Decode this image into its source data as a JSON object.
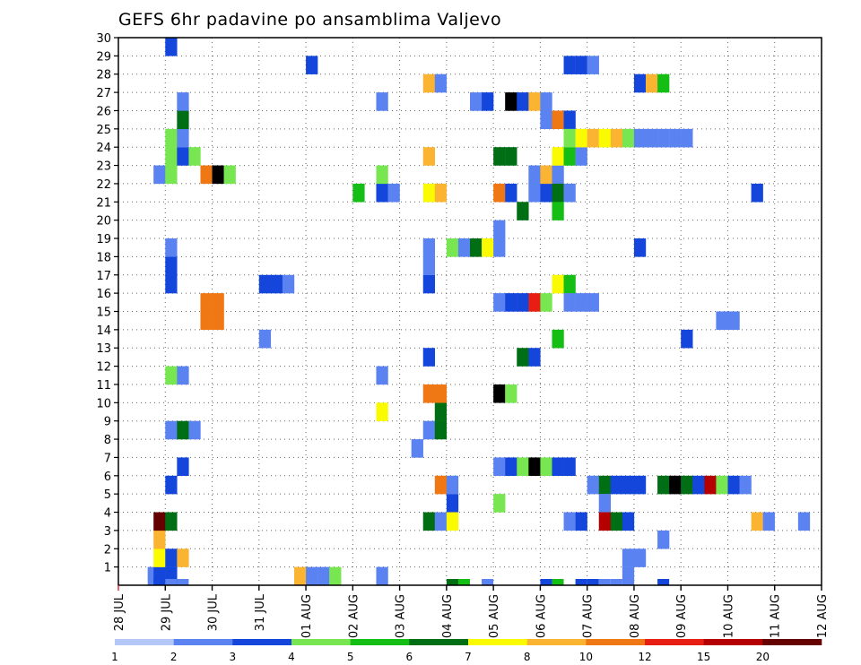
{
  "chart_data": {
    "type": "heatmap",
    "title": "GEFS 6hr padavine po ansamblima Valjevo",
    "x_tick_labels": [
      "28 JUL",
      "29 JUL",
      "30 JUL",
      "31 JUL",
      "01 AUG",
      "02 AUG",
      "03 AUG",
      "04 AUG",
      "05 AUG",
      "06 AUG",
      "07 AUG",
      "08 AUG",
      "09 AUG",
      "10 AUG",
      "11 AUG",
      "12 AUG"
    ],
    "y_tick_labels": [
      "1",
      "2",
      "3",
      "4",
      "5",
      "6",
      "7",
      "8",
      "9",
      "10",
      "11",
      "12",
      "13",
      "14",
      "15",
      "16",
      "17",
      "18",
      "19",
      "20",
      "21",
      "22",
      "23",
      "24",
      "25",
      "26",
      "27",
      "28",
      "29",
      "30"
    ],
    "xlim": [
      0,
      60
    ],
    "ylim": [
      0,
      30
    ],
    "x_unit": "6-hour step from 28 JUL 00Z",
    "legend": {
      "labels": [
        "1",
        "2",
        "3",
        "4",
        "5",
        "6",
        "7",
        "8",
        "10",
        "12",
        "15",
        "20"
      ],
      "colors": [
        "#b4c8f8",
        "#5a82f0",
        "#1446dc",
        "#78e650",
        "#14be14",
        "#006e14",
        "#fafa00",
        "#fab432",
        "#f07814",
        "#e61e14",
        "#b40000",
        "#640000"
      ]
    },
    "cells": [
      [
        2.5,
        1,
        1
      ],
      [
        3,
        1,
        2
      ],
      [
        3,
        2,
        6
      ],
      [
        3,
        3,
        7
      ],
      [
        3,
        4,
        11
      ],
      [
        4,
        1,
        2
      ],
      [
        4,
        2,
        2
      ],
      [
        5,
        2,
        7
      ],
      [
        4,
        4,
        5
      ],
      [
        4,
        6,
        2
      ],
      [
        4,
        9,
        1
      ],
      [
        5,
        9,
        5
      ],
      [
        6,
        9,
        1
      ],
      [
        4,
        12,
        3
      ],
      [
        5,
        12,
        1
      ],
      [
        4,
        17,
        2
      ],
      [
        4,
        18,
        2
      ],
      [
        4,
        19,
        1
      ],
      [
        3,
        23,
        1
      ],
      [
        4,
        23,
        3
      ],
      [
        4,
        24,
        3
      ],
      [
        5,
        24,
        2
      ],
      [
        6,
        24,
        3
      ],
      [
        4,
        25,
        3
      ],
      [
        5,
        25,
        1
      ],
      [
        5,
        26,
        5
      ],
      [
        5,
        27,
        1
      ],
      [
        4,
        30,
        2
      ],
      [
        5,
        7,
        2
      ],
      [
        7,
        15,
        8
      ],
      [
        8,
        15,
        8
      ],
      [
        7,
        16,
        8
      ],
      [
        8,
        16,
        8
      ],
      [
        7,
        23,
        8
      ],
      [
        8,
        23,
        12
      ],
      [
        9,
        23,
        3
      ],
      [
        12,
        14,
        1
      ],
      [
        12,
        17,
        2
      ],
      [
        13,
        17,
        2
      ],
      [
        14,
        17,
        1
      ],
      [
        15,
        1,
        7
      ],
      [
        16,
        1,
        1
      ],
      [
        17,
        1,
        1
      ],
      [
        18,
        1,
        3
      ],
      [
        16,
        29,
        2
      ],
      [
        20,
        22,
        4
      ],
      [
        22,
        1,
        1
      ],
      [
        22,
        10,
        6
      ],
      [
        22,
        12,
        1
      ],
      [
        22,
        22,
        2
      ],
      [
        22,
        23,
        3
      ],
      [
        23,
        22,
        1
      ],
      [
        22,
        27,
        1
      ],
      [
        25,
        8,
        1
      ],
      [
        26,
        9,
        1
      ],
      [
        26,
        13,
        2
      ],
      [
        26,
        4,
        5
      ],
      [
        26,
        11,
        8
      ],
      [
        26,
        17,
        2
      ],
      [
        26,
        18,
        1
      ],
      [
        26,
        19,
        1
      ],
      [
        27,
        4,
        1
      ],
      [
        27,
        6,
        8
      ],
      [
        27,
        9,
        5
      ],
      [
        26,
        22,
        6
      ],
      [
        26,
        24,
        7
      ],
      [
        26,
        28,
        7
      ],
      [
        27,
        28,
        1
      ],
      [
        27,
        10,
        5
      ],
      [
        27,
        11,
        8
      ],
      [
        27,
        22,
        7
      ],
      [
        28,
        5,
        2
      ],
      [
        28,
        19,
        3
      ],
      [
        29,
        19,
        1
      ],
      [
        30,
        19,
        5
      ],
      [
        31,
        19,
        6
      ],
      [
        30,
        27,
        1
      ],
      [
        31,
        27,
        2
      ],
      [
        28,
        4,
        6
      ],
      [
        28,
        6,
        1
      ],
      [
        32,
        5,
        3
      ],
      [
        32,
        7,
        1
      ],
      [
        33,
        7,
        2
      ],
      [
        34,
        7,
        3
      ],
      [
        35,
        7,
        12
      ],
      [
        36,
        7,
        3
      ],
      [
        32,
        11,
        12
      ],
      [
        33,
        11,
        3
      ],
      [
        32,
        16,
        1
      ],
      [
        33,
        16,
        2
      ],
      [
        34,
        16,
        2
      ],
      [
        35,
        16,
        9
      ],
      [
        36,
        16,
        3
      ],
      [
        32,
        19,
        1
      ],
      [
        32,
        20,
        1
      ],
      [
        32,
        22,
        8
      ],
      [
        33,
        22,
        2
      ],
      [
        32,
        24,
        5
      ],
      [
        33,
        24,
        5
      ],
      [
        33,
        27,
        12
      ],
      [
        34,
        27,
        2
      ],
      [
        35,
        27,
        7
      ],
      [
        36,
        27,
        1
      ],
      [
        34,
        13,
        5
      ],
      [
        35,
        13,
        2
      ],
      [
        34,
        21,
        5
      ],
      [
        35,
        22,
        1
      ],
      [
        36,
        22,
        2
      ],
      [
        35,
        23,
        1
      ],
      [
        36,
        23,
        7
      ],
      [
        37,
        23,
        1
      ],
      [
        36,
        26,
        1
      ],
      [
        37,
        26,
        8
      ],
      [
        38,
        26,
        2
      ],
      [
        37,
        14,
        4
      ],
      [
        37,
        17,
        6
      ],
      [
        38,
        17,
        4
      ],
      [
        37,
        22,
        5
      ],
      [
        37,
        24,
        6
      ],
      [
        38,
        24,
        4
      ],
      [
        39,
        24,
        1
      ],
      [
        37,
        21,
        4
      ],
      [
        37,
        7,
        2
      ],
      [
        38,
        7,
        2
      ],
      [
        38,
        16,
        1
      ],
      [
        39,
        16,
        1
      ],
      [
        40,
        16,
        1
      ],
      [
        38,
        25,
        3
      ],
      [
        39,
        25,
        6
      ],
      [
        40,
        25,
        7
      ],
      [
        41,
        25,
        6
      ],
      [
        42,
        25,
        7
      ],
      [
        43,
        25,
        3
      ],
      [
        44,
        25,
        1
      ],
      [
        45,
        25,
        1
      ],
      [
        46,
        25,
        1
      ],
      [
        47,
        25,
        1
      ],
      [
        48,
        25,
        1
      ],
      [
        38,
        29,
        2
      ],
      [
        39,
        29,
        2
      ],
      [
        40,
        29,
        1
      ],
      [
        38,
        22,
        1
      ],
      [
        38,
        4,
        1
      ],
      [
        39,
        4,
        2
      ],
      [
        40,
        6,
        1
      ],
      [
        41,
        6,
        5
      ],
      [
        42,
        6,
        2
      ],
      [
        41,
        5,
        1
      ],
      [
        41,
        4,
        10
      ],
      [
        42,
        4,
        5
      ],
      [
        43,
        4,
        2
      ],
      [
        43,
        1,
        1
      ],
      [
        43,
        2,
        1
      ],
      [
        44,
        2,
        1
      ],
      [
        43,
        6,
        2
      ],
      [
        44,
        6,
        2
      ],
      [
        44,
        19,
        2
      ],
      [
        44,
        28,
        2
      ],
      [
        45,
        28,
        7
      ],
      [
        46,
        28,
        4
      ],
      [
        46,
        3,
        1
      ],
      [
        46,
        6,
        5
      ],
      [
        47,
        6,
        12
      ],
      [
        48,
        6,
        5
      ],
      [
        49,
        6,
        2
      ],
      [
        50,
        6,
        10
      ],
      [
        51,
        6,
        3
      ],
      [
        52,
        6,
        2
      ],
      [
        53,
        6,
        1
      ],
      [
        48,
        14,
        2
      ],
      [
        51,
        15,
        1
      ],
      [
        52,
        15,
        1
      ],
      [
        54,
        4,
        7
      ],
      [
        55,
        4,
        1
      ],
      [
        58,
        4,
        1
      ],
      [
        54,
        22,
        2
      ]
    ],
    "bottom_ticks": [
      [
        29,
        4
      ],
      [
        37,
        4
      ],
      [
        3,
        2
      ],
      [
        40,
        2
      ],
      [
        46,
        2
      ],
      [
        41,
        1
      ],
      [
        39,
        2
      ],
      [
        36,
        2
      ],
      [
        28,
        5
      ],
      [
        42,
        1
      ],
      [
        5,
        1
      ],
      [
        4,
        1
      ],
      [
        31,
        1
      ]
    ]
  }
}
